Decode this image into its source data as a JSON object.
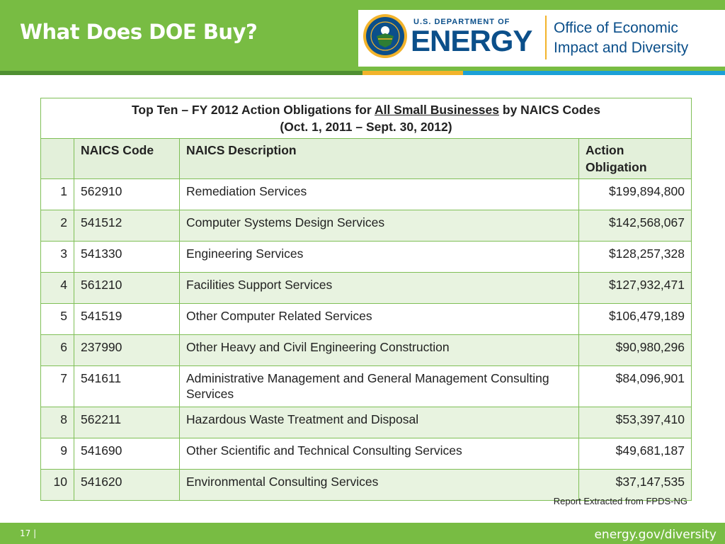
{
  "header": {
    "title": "What Does DOE Buy?",
    "logo": {
      "pre_text": "U.S. DEPARTMENT OF",
      "main_text": "ENERGY",
      "office_line1": "Office of Economic",
      "office_line2": "Impact and Diversity",
      "seal_icon": "doe-seal-icon"
    }
  },
  "colors": {
    "green": "#78bc43",
    "dark_green": "#4f8f31",
    "gold": "#f2b32b",
    "blue": "#1ba0d7",
    "navy": "#0b4f8a",
    "row_tint": "#e8f3e0"
  },
  "table": {
    "caption_before": "Top Ten – FY 2012 Action Obligations for ",
    "caption_underlined": "All Small Businesses",
    "caption_after": " by NAICS Codes",
    "caption_line2": "(Oct. 1, 2011 – Sept. 30, 2012)",
    "headers": [
      "",
      "NAICS Code",
      "NAICS Description",
      "Action Obligation"
    ],
    "rows": [
      {
        "rank": "1",
        "code": "562910",
        "description": "Remediation Services",
        "amount": "$199,894,800"
      },
      {
        "rank": "2",
        "code": "541512",
        "description": "Computer Systems Design Services",
        "amount": "$142,568,067"
      },
      {
        "rank": "3",
        "code": "541330",
        "description": "Engineering Services",
        "amount": "$128,257,328"
      },
      {
        "rank": "4",
        "code": "561210",
        "description": "Facilities Support Services",
        "amount": "$127,932,471"
      },
      {
        "rank": "5",
        "code": "541519",
        "description": "Other Computer Related Services",
        "amount": "$106,479,189"
      },
      {
        "rank": "6",
        "code": "237990",
        "description": "Other Heavy and Civil Engineering Construction",
        "amount": "$90,980,296"
      },
      {
        "rank": "7",
        "code": "541611",
        "description": "Administrative Management and General Management Consulting Services",
        "amount": "$84,096,901"
      },
      {
        "rank": "8",
        "code": "562211",
        "description": "Hazardous Waste Treatment and Disposal",
        "amount": "$53,397,410"
      },
      {
        "rank": "9",
        "code": "541690",
        "description": "Other Scientific and Technical Consulting Services",
        "amount": "$49,681,187"
      },
      {
        "rank": "10",
        "code": "541620",
        "description": "Environmental Consulting Services",
        "amount": "$37,147,535"
      }
    ]
  },
  "note": "Report Extracted from FPDS-NG",
  "footer": {
    "page": "17 |",
    "site": "energy.gov/diversity"
  }
}
